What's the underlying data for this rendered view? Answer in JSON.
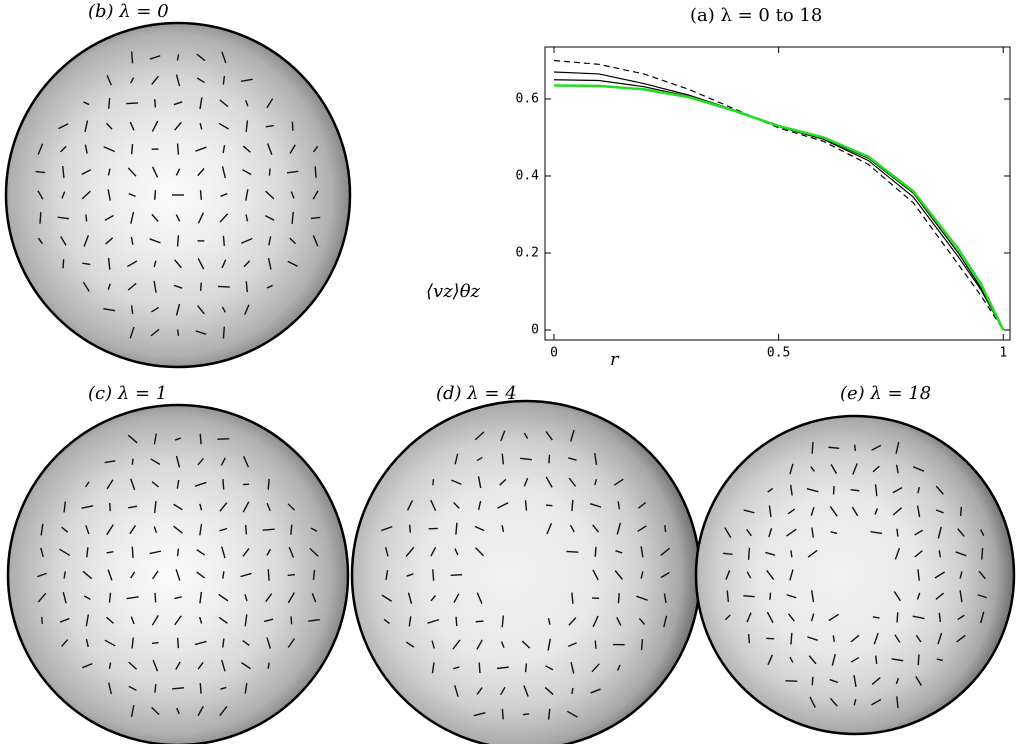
{
  "chart_data": {
    "type": "line",
    "title": "(a)  λ = 0 to 18",
    "xlabel": "r",
    "ylabel": "⟨vz⟩θz",
    "x": [
      0,
      0.1,
      0.2,
      0.3,
      0.4,
      0.5,
      0.6,
      0.7,
      0.8,
      0.9,
      0.95,
      1
    ],
    "series": [
      {
        "color": "#000000",
        "dashed": true,
        "values": [
          0.7,
          0.69,
          0.665,
          0.625,
          0.575,
          0.525,
          0.49,
          0.43,
          0.33,
          0.17,
          0.09,
          0
        ]
      },
      {
        "color": "#000000",
        "values": [
          0.67,
          0.665,
          0.64,
          0.61,
          0.572,
          0.528,
          0.495,
          0.44,
          0.345,
          0.19,
          0.105,
          0
        ]
      },
      {
        "color": "#000000",
        "values": [
          0.65,
          0.648,
          0.632,
          0.607,
          0.571,
          0.53,
          0.497,
          0.446,
          0.355,
          0.2,
          0.11,
          0
        ]
      },
      {
        "color": "#22dd22",
        "values": [
          0.635,
          0.634,
          0.625,
          0.605,
          0.57,
          0.53,
          0.5,
          0.45,
          0.36,
          0.21,
          0.12,
          0
        ]
      }
    ],
    "xlim": [
      -0.02,
      1.015
    ],
    "ylim": [
      -0.026,
      0.735
    ],
    "xticks": [
      0,
      0.5,
      1
    ],
    "yticks": [
      0,
      0.2,
      0.4,
      0.6
    ]
  },
  "panels": [
    {
      "label": "(b)  λ = 0"
    },
    {
      "label": "(c)  λ = 1"
    },
    {
      "label": "(d)  λ = 4"
    },
    {
      "label": "(e)  λ = 18"
    }
  ]
}
